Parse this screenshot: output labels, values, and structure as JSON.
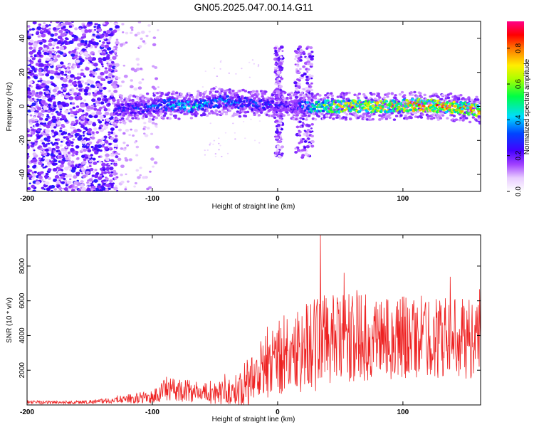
{
  "title": "GN05.2025.047.00.14.G11",
  "chart_data": [
    {
      "type": "heatmap",
      "title": "GN05.2025.047.00.14.G11",
      "xlabel": "Height of straight line (km)",
      "ylabel": "Frequency (Hz)",
      "xlim": [
        -200,
        162
      ],
      "ylim": [
        -50,
        50
      ],
      "xticks": [
        -200,
        -100,
        0,
        100
      ],
      "yticks": [
        -40,
        -20,
        0,
        20,
        40
      ],
      "colorbar": {
        "label": "Normalized spectral amplitude",
        "range": [
          0,
          0.95
        ],
        "ticks": [
          0.0,
          0.2,
          0.4,
          0.6,
          0.8
        ],
        "colormap": "rainbow (white-violet-blue-cyan-green-yellow-red-magenta)"
      },
      "ridge": {
        "description": "Spectral ridge near 0 Hz",
        "x": [
          -130,
          -110,
          -90,
          -70,
          -50,
          -30,
          -10,
          0,
          10,
          30,
          50,
          70,
          90,
          110,
          130,
          150,
          162
        ],
        "frequency": [
          -2,
          -1,
          1,
          0,
          3,
          2,
          1,
          1,
          0,
          0,
          0,
          0,
          0,
          1,
          0,
          -1,
          -3
        ],
        "amplitude": [
          0.3,
          0.35,
          0.45,
          0.5,
          0.45,
          0.4,
          0.35,
          0.3,
          0.25,
          0.6,
          0.75,
          0.8,
          0.8,
          0.85,
          0.85,
          0.8,
          0.9
        ]
      },
      "grid": false
    },
    {
      "type": "line",
      "xlabel": "Height of straight line (km)",
      "ylabel": "SNR (10 * v/v)",
      "xlim": [
        -200,
        162
      ],
      "ylim": [
        0,
        9800
      ],
      "xticks": [
        -200,
        -100,
        0,
        100
      ],
      "yticks": [
        2000,
        4000,
        6000,
        8000
      ],
      "color": "#ee2222",
      "envelope": {
        "x": [
          -200,
          -160,
          -130,
          -120,
          -100,
          -90,
          -80,
          -60,
          -40,
          -30,
          -20,
          -10,
          0,
          10,
          20,
          30,
          35,
          40,
          60,
          80,
          100,
          120,
          140,
          150,
          162
        ],
        "mean": [
          150,
          150,
          250,
          350,
          450,
          800,
          900,
          700,
          700,
          900,
          1400,
          2400,
          2800,
          3000,
          3300,
          3600,
          3800,
          3700,
          3800,
          3900,
          3900,
          3900,
          3900,
          3800,
          3700
        ],
        "spread": [
          100,
          100,
          150,
          250,
          400,
          700,
          700,
          600,
          700,
          1100,
          1800,
          2200,
          2400,
          2400,
          2600,
          2800,
          3000,
          2600,
          2600,
          2500,
          2500,
          2400,
          2300,
          2300,
          2300
        ]
      },
      "peak": {
        "x": 34,
        "y": 9800
      }
    }
  ]
}
